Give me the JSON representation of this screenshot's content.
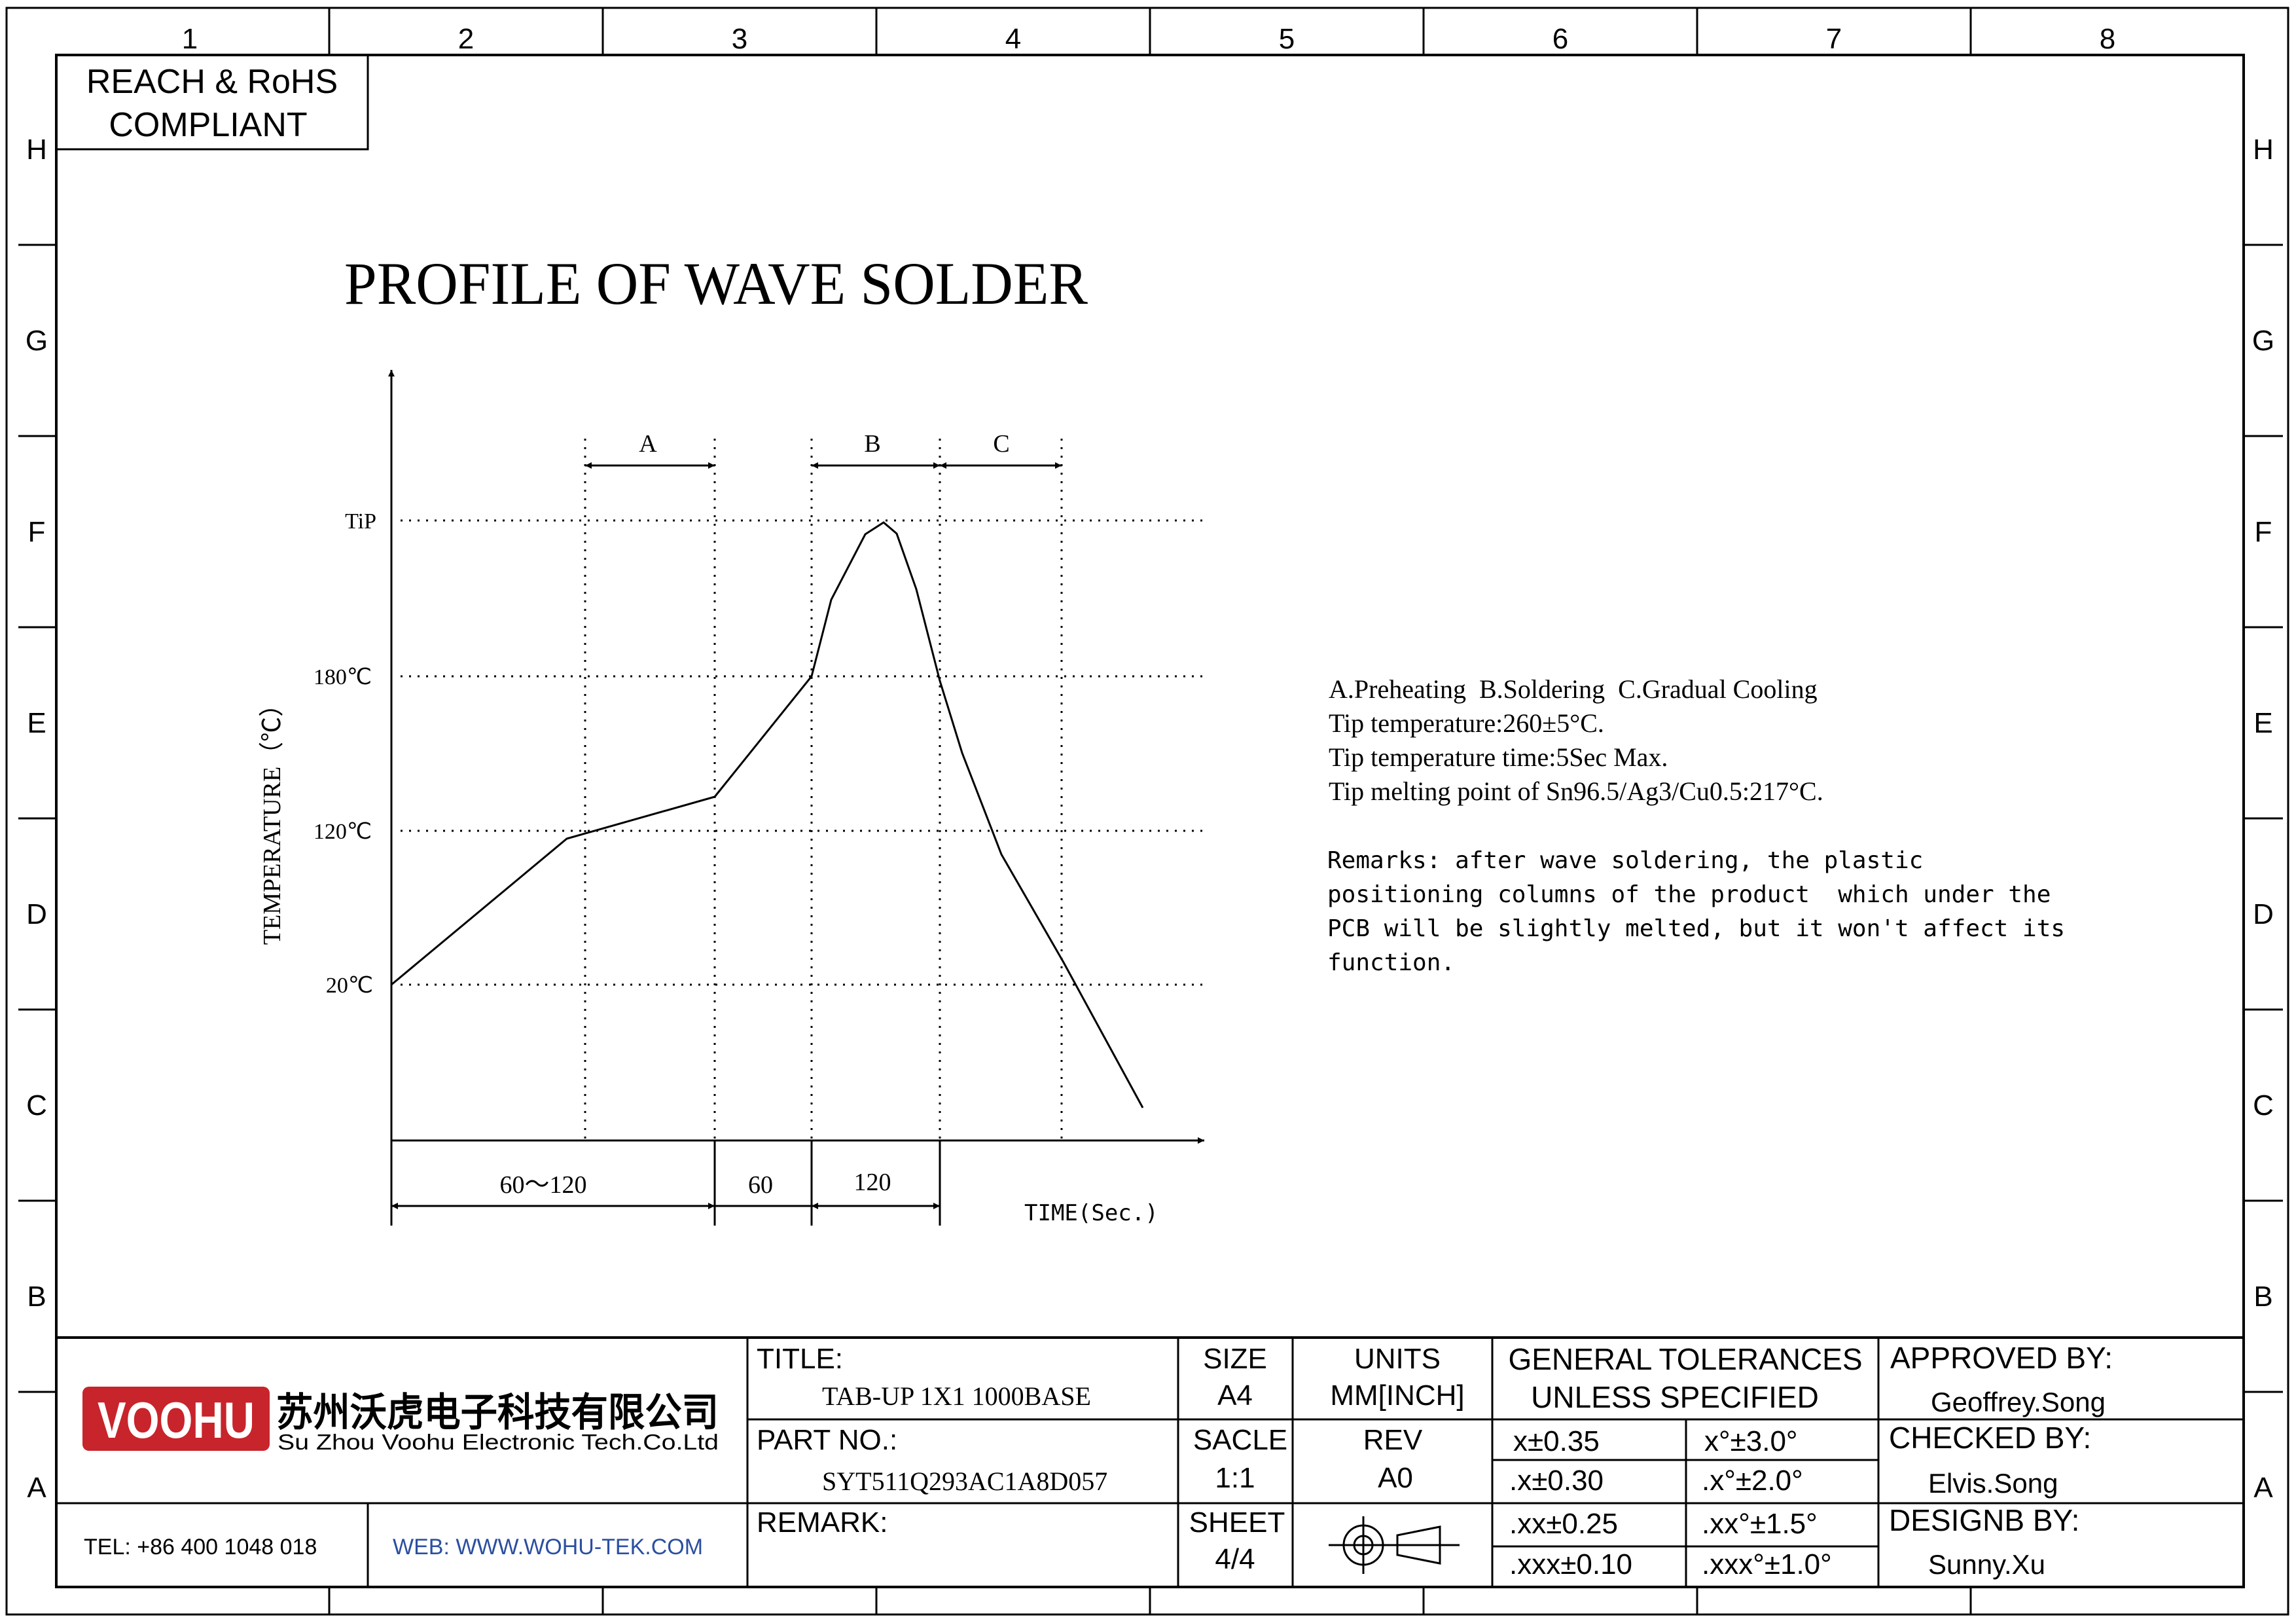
{
  "border": {
    "columns": [
      "1",
      "2",
      "3",
      "4",
      "5",
      "6",
      "7",
      "8"
    ],
    "rows": [
      "H",
      "G",
      "F",
      "E",
      "D",
      "C",
      "B",
      "A"
    ]
  },
  "compliance_box": {
    "line1": "REACH & RoHS",
    "line2": "COMPLIANT"
  },
  "drawing_title": "PROFILE OF WAVE SOLDER",
  "profile": {
    "ylabel": "TEMPERATURE（℃）",
    "xlabel": "TIME(Sec.)",
    "y_ticks": [
      "TiP",
      "180℃",
      "120℃",
      "20℃"
    ],
    "zones": [
      "A",
      "B",
      "C"
    ],
    "time_spans": [
      "60～120",
      "60",
      "120"
    ]
  },
  "notes": {
    "lines": [
      "A.Preheating  B.Soldering  C.Gradual Cooling",
      "Tip temperature:260±5°C.",
      "Tip temperature time:5Sec Max.",
      "Tip melting point of Sn96.5/Ag3/Cu0.5:217°C."
    ],
    "remarks": [
      "Remarks: after wave soldering, the plastic",
      "positioning columns of the product  which under the",
      "PCB will be slightly melted, but it won't affect its",
      "function."
    ]
  },
  "title_block": {
    "logo_text": "VOOHU",
    "company_cn": "苏州沃虎电子科技有限公司",
    "company_en": "Su Zhou Voohu Electronic Tech.Co.Ltd",
    "tel": "TEL: +86 400 1048 018",
    "web": "WEB: WWW.WOHU-TEK.COM",
    "title_label": "TITLE:",
    "title_value": "TAB-UP 1X1 1000BASE",
    "part_label": "PART NO.:",
    "part_value": "SYT511Q293AC1A8D057",
    "remark_label": "REMARK:",
    "size_label": "SIZE",
    "size_value": "A4",
    "units_label": "UNITS",
    "units_value": "MM[INCH]",
    "scale_label": "SACLE",
    "scale_value": "1:1",
    "rev_label": "REV",
    "rev_value": "A0",
    "sheet_label": "SHEET",
    "sheet_value": "4/4",
    "tolerance_header_1": "GENERAL TOLERANCES",
    "tolerance_header_2": "UNLESS SPECIFIED",
    "tolerances": [
      [
        "x±0.35",
        "x°±3.0°"
      ],
      [
        ".x±0.30",
        ".x°±2.0°"
      ],
      [
        ".xx±0.25",
        ".xx°±1.5°"
      ],
      [
        ".xxx±0.10",
        ".xxx°±1.0°"
      ]
    ],
    "approved_label": "APPROVED BY:",
    "approved_value": "Geoffrey.Song",
    "checked_label": "CHECKED BY:",
    "checked_value": "Elvis.Song",
    "designed_label": "DESIGNB BY:",
    "designed_value": "Sunny.Xu"
  },
  "colors": {
    "line": "#000000",
    "logo_red": "#c8242b",
    "web_blue": "#2b4fa0"
  }
}
